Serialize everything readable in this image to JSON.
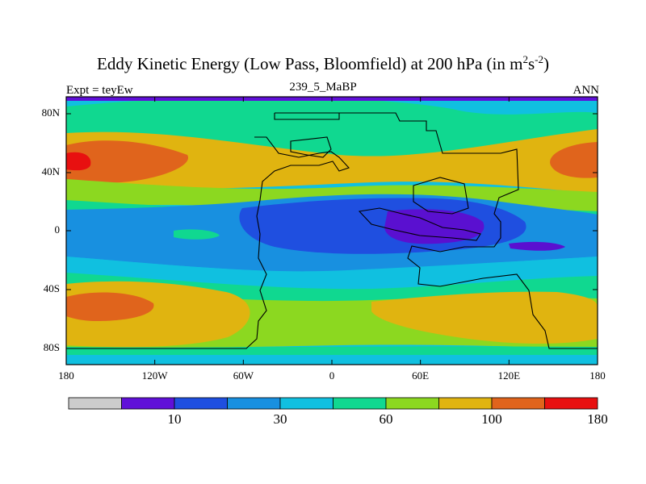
{
  "title_main": "Eddy Kinetic Energy (Low Pass, Bloomfield) at 200 hPa (in m",
  "title_sup1": "2",
  "title_mid": "s",
  "title_sup2": "-2",
  "title_end": ")",
  "subtitle_left": "Expt = teyEw",
  "subtitle_center": "239_5_MaBP",
  "subtitle_right": "ANN",
  "y_ticks": [
    "80N",
    "40N",
    "0",
    "40S",
    "80S"
  ],
  "x_ticks": [
    "180",
    "120W",
    "60W",
    "0",
    "60E",
    "120E",
    "180"
  ],
  "colorbar": {
    "colors": [
      "#cccccc",
      "#6010d8",
      "#1f4fe0",
      "#1890e0",
      "#10c0e0",
      "#10d890",
      "#8cd820",
      "#e0b410",
      "#e0641c",
      "#e81010"
    ],
    "labels": [
      "10",
      "30",
      "60",
      "100",
      "180"
    ]
  },
  "contour_levels": {
    "purple": "#5a10d0",
    "dark_blue": "#1f4fe0",
    "mid_blue": "#1890e0",
    "cyan": "#10c0e0",
    "green": "#10d890",
    "yellow_green": "#8cd820",
    "yellow": "#e0b410",
    "orange": "#e0641c"
  }
}
